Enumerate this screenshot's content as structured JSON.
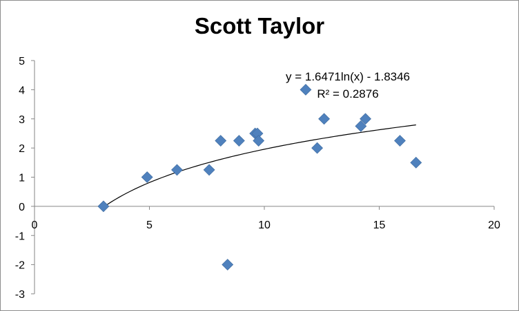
{
  "chart_data": {
    "type": "scatter",
    "title": "Scott Taylor",
    "xlabel": "",
    "ylabel": "",
    "xlim": [
      0,
      20
    ],
    "ylim": [
      -3,
      5
    ],
    "x_ticks": [
      0,
      5,
      10,
      15,
      20
    ],
    "y_ticks": [
      5,
      4,
      3,
      2,
      1,
      0,
      -1,
      -2,
      -3
    ],
    "grid": false,
    "legend": "none",
    "series": [
      {
        "marker": "diamond",
        "color": "#4F81BD",
        "points": [
          {
            "x": 3.0,
            "y": 0.0
          },
          {
            "x": 4.9,
            "y": 1.0
          },
          {
            "x": 6.2,
            "y": 1.25
          },
          {
            "x": 7.6,
            "y": 1.25
          },
          {
            "x": 8.1,
            "y": 2.25
          },
          {
            "x": 8.4,
            "y": -2.0
          },
          {
            "x": 8.9,
            "y": 2.25
          },
          {
            "x": 9.6,
            "y": 2.5
          },
          {
            "x": 9.7,
            "y": 2.5
          },
          {
            "x": 9.75,
            "y": 2.25
          },
          {
            "x": 11.8,
            "y": 4.0
          },
          {
            "x": 12.3,
            "y": 2.0
          },
          {
            "x": 12.6,
            "y": 3.0
          },
          {
            "x": 14.2,
            "y": 2.75
          },
          {
            "x": 14.4,
            "y": 3.0
          },
          {
            "x": 15.9,
            "y": 2.25
          },
          {
            "x": 16.6,
            "y": 1.5
          }
        ]
      }
    ],
    "trendline": {
      "type": "logarithmic",
      "a": 1.6471,
      "b": -1.8346,
      "x_range": [
        3.0,
        16.6
      ],
      "color": "#000000",
      "equation_text": "y = 1.6471ln(x) - 1.8346",
      "r2_text": "R² = 0.2876"
    }
  }
}
